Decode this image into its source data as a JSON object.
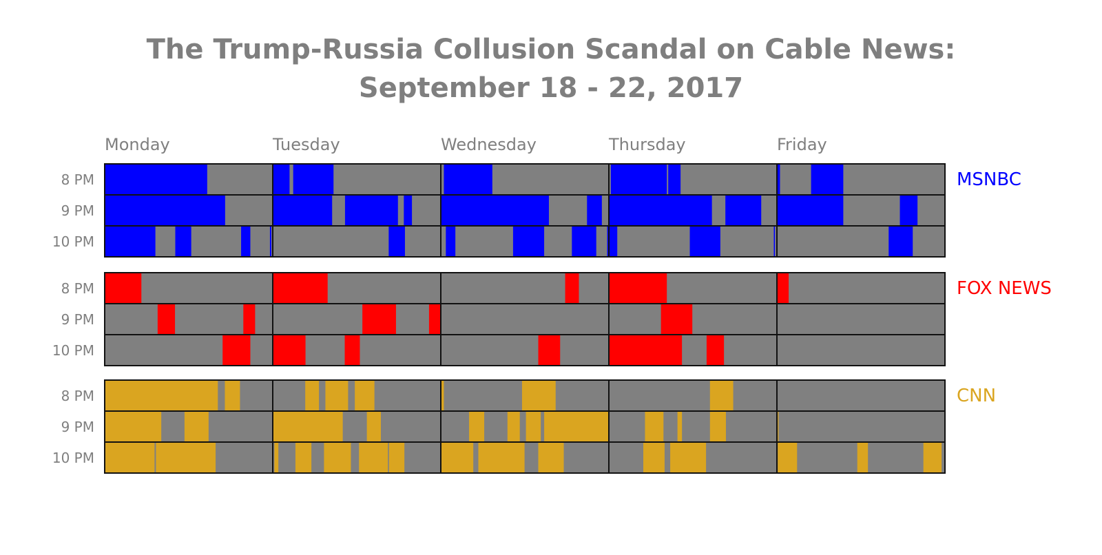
{
  "chart_data": {
    "type": "bar",
    "title": "The Trump-Russia Collusion Scandal on Cable News:",
    "subtitle": "September 18 - 22, 2017",
    "days": [
      "Monday",
      "Tuesday",
      "Wednesday",
      "Thursday",
      "Friday"
    ],
    "hours": [
      "8 PM",
      "9 PM",
      "10 PM"
    ],
    "minutes_per_hour": 60,
    "background_color": "#808080",
    "networks": [
      {
        "name": "MSNBC",
        "color": "#0000ff",
        "segments": [
          [
            [
              [
                0,
                36.6
              ]
            ],
            [
              [
                0,
                6
              ],
              [
                7.3,
                21.7
              ]
            ],
            [
              [
                1.1,
                18.4
              ]
            ],
            [
              [
                0.7,
                20.7
              ],
              [
                21.2,
                25.6
              ]
            ],
            [
              [
                0.2,
                1.1
              ],
              [
                12.2,
                23.7
              ]
            ]
          ],
          [
            [
              [
                0,
                43
              ]
            ],
            [
              [
                0,
                21.2
              ],
              [
                25.8,
                44.7
              ],
              [
                46.8,
                49.7
              ]
            ],
            [
              [
                0,
                38.6
              ],
              [
                52.2,
                57.5
              ]
            ],
            [
              [
                0,
                36.8
              ],
              [
                41.6,
                54.4
              ]
            ],
            [
              [
                0,
                23.7
              ],
              [
                43.9,
                50.2
              ]
            ]
          ],
          [
            [
              [
                0,
                18.1
              ],
              [
                25.2,
                30.9
              ],
              [
                48.7,
                52
              ],
              [
                59,
                59.5
              ]
            ],
            [
              [
                41.4,
                47.2
              ]
            ],
            [
              [
                1.8,
                5.2
              ],
              [
                25.8,
                36.9
              ],
              [
                46.8,
                55.5
              ],
              [
                59.4,
                60
              ]
            ],
            [
              [
                0,
                3
              ],
              [
                28.9,
                39.8
              ],
              [
                58.9,
                59.3
              ]
            ],
            [
              [
                39.9,
                48.5
              ]
            ]
          ]
        ]
      },
      {
        "name": "FOX NEWS",
        "color": "#ff0000",
        "segments": [
          [
            [
              [
                0,
                13.1
              ]
            ],
            [
              [
                0,
                19.6
              ]
            ],
            [
              [
                44.4,
                49.3
              ]
            ],
            [
              [
                0,
                20.7
              ]
            ],
            [
              [
                0,
                4.2
              ]
            ]
          ],
          [
            [
              [
                18.9,
                25.1
              ],
              [
                49.5,
                53.7
              ]
            ],
            [
              [
                32,
                44
              ],
              [
                55.8,
                60
              ]
            ],
            [],
            [
              [
                18.6,
                29.8
              ]
            ],
            []
          ],
          [
            [
              [
                42.1,
                52
              ]
            ],
            [
              [
                0,
                11.7
              ],
              [
                25.7,
                31.1
              ]
            ],
            [
              [
                34.8,
                42.6
              ]
            ],
            [
              [
                0,
                26.1
              ],
              [
                34.9,
                41.1
              ]
            ],
            []
          ]
        ]
      },
      {
        "name": "CNN",
        "color": "#daa520",
        "segments": [
          [
            [
              [
                0,
                40.4
              ],
              [
                42.9,
                48.3
              ]
            ],
            [
              [
                11.6,
                16.5
              ],
              [
                18.8,
                26.9
              ],
              [
                29.3,
                36.3
              ]
            ],
            [
              [
                0.2,
                1.1
              ],
              [
                29,
                41
              ]
            ],
            [
              [
                36.1,
                44.4
              ]
            ],
            []
          ],
          [
            [
              [
                0,
                20.2
              ],
              [
                28.5,
                37.1
              ]
            ],
            [
              [
                0,
                25
              ],
              [
                33.6,
                38.6
              ]
            ],
            [
              [
                10.1,
                15.5
              ],
              [
                23.8,
                28.2
              ],
              [
                30.4,
                35.7
              ],
              [
                36.9,
                60
              ]
            ],
            [
              [
                12.9,
                19.5
              ],
              [
                24.5,
                26.1
              ],
              [
                36.1,
                41.8
              ]
            ],
            [
              [
                0.3,
                0.6
              ]
            ]
          ],
          [
            [
              [
                0,
                17.8
              ],
              [
                18.3,
                39.6
              ]
            ],
            [
              [
                0.6,
                2
              ],
              [
                8.1,
                13.8
              ],
              [
                18.3,
                27.9
              ],
              [
                30.8,
                41.1
              ],
              [
                41.5,
                47
              ]
            ],
            [
              [
                0.1,
                11.6
              ],
              [
                13.4,
                29.9
              ],
              [
                34.8,
                43.9
              ]
            ],
            [
              [
                12.3,
                19.9
              ],
              [
                21.9,
                34.7
              ]
            ],
            [
              [
                0.3,
                7.2
              ],
              [
                28.7,
                32.5
              ],
              [
                52.3,
                58.8
              ]
            ]
          ]
        ]
      }
    ]
  }
}
